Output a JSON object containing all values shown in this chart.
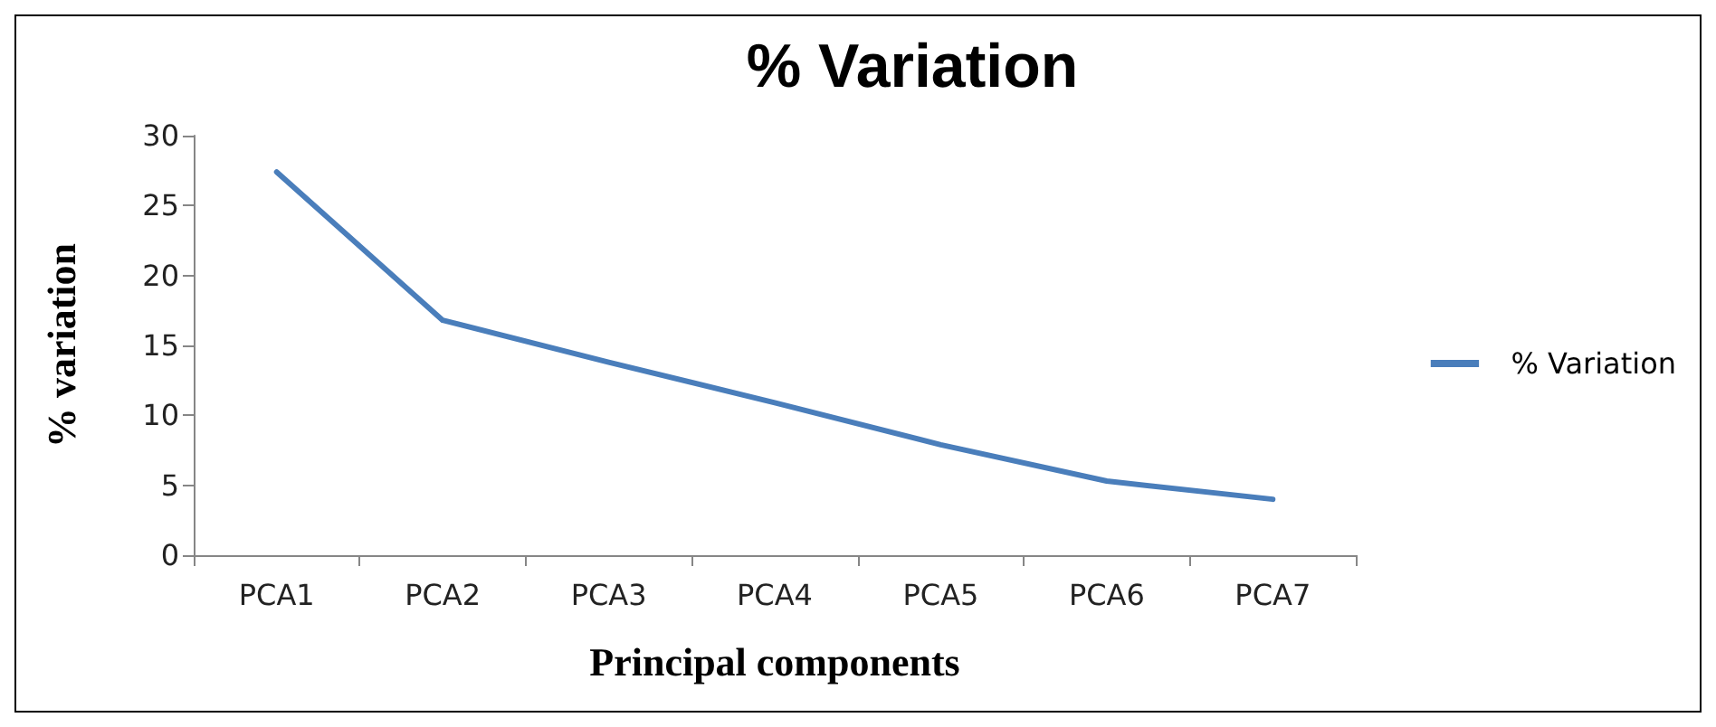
{
  "chart_data": {
    "type": "line",
    "title": "% Variation",
    "xlabel": "Principal components",
    "ylabel": "% variation",
    "categories": [
      "PCA1",
      "PCA2",
      "PCA3",
      "PCA4",
      "PCA5",
      "PCA6",
      "PCA7"
    ],
    "series": [
      {
        "name": "% Variation",
        "color": "#4a7ebb",
        "values": [
          27.4,
          16.8,
          13.8,
          10.9,
          7.9,
          5.3,
          4.0
        ]
      }
    ],
    "ylim": [
      0,
      30
    ],
    "yticks": [
      0,
      5,
      10,
      15,
      20,
      25,
      30
    ],
    "grid": false,
    "legend": "right",
    "marker": "none",
    "line_style": "solid"
  }
}
